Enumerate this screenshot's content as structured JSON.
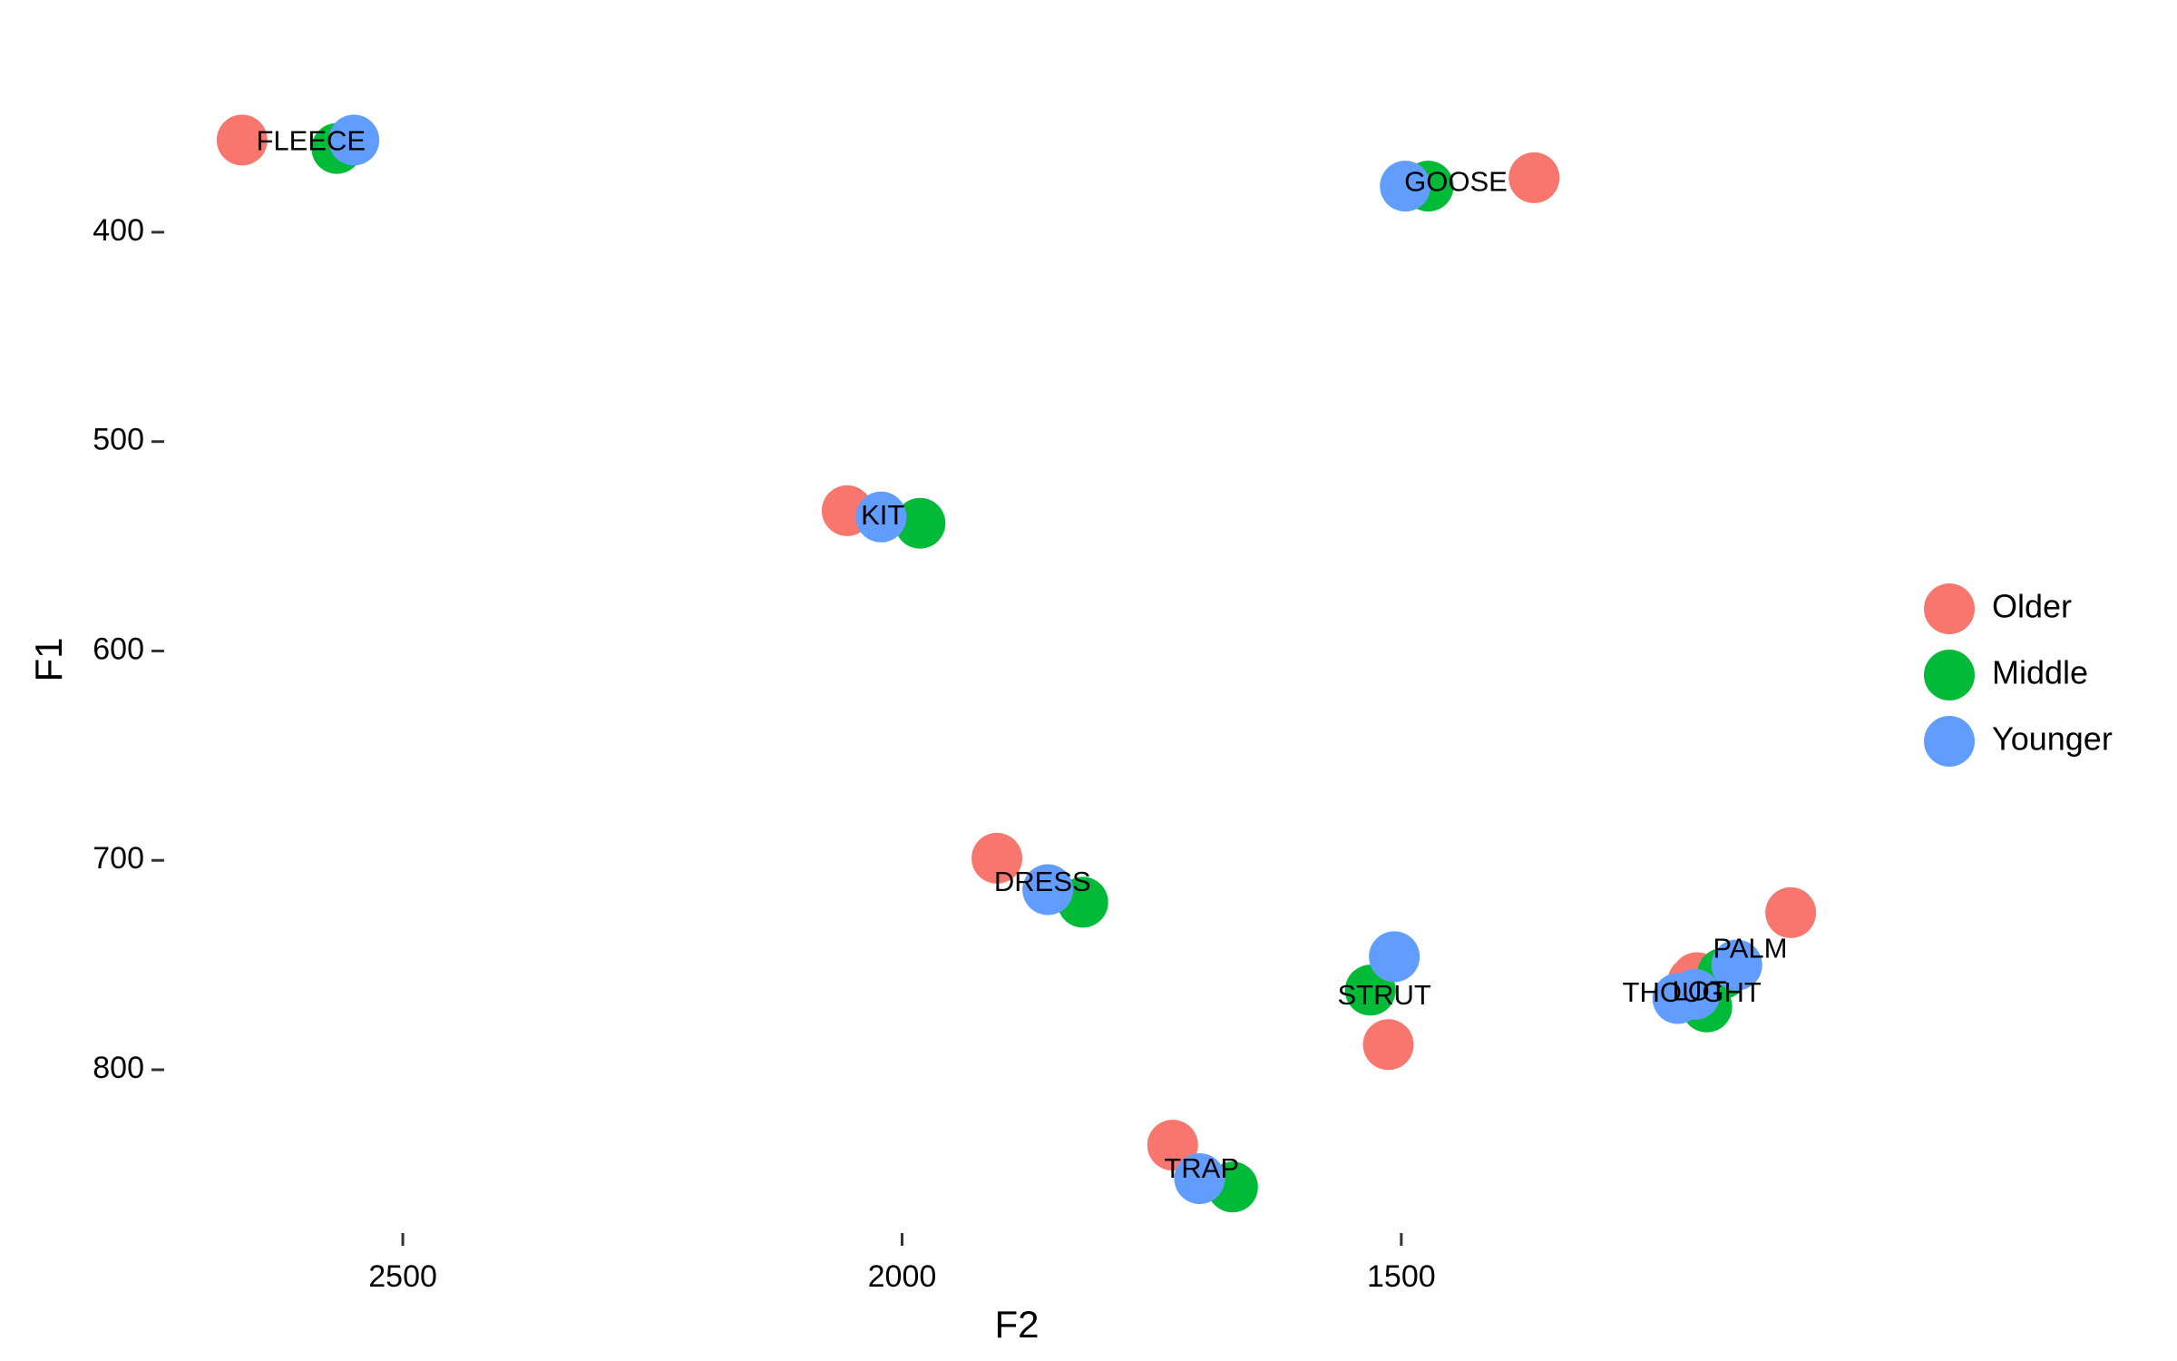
{
  "chart_data": {
    "type": "scatter",
    "x_label": "F2",
    "y_label": "F1",
    "categories": [
      "FLEECE",
      "GOOSE",
      "KIT",
      "DRESS",
      "STRUT",
      "TRAP",
      "PALM",
      "THOUGHT",
      "LOT"
    ],
    "xlim": [
      2739,
      1032
    ],
    "ylim": [
      878,
      332
    ],
    "x_reversed": true,
    "y_reversed": true,
    "xticks": [
      2500,
      2000,
      1500
    ],
    "yticks": [
      400,
      500,
      600,
      700,
      800
    ],
    "legend": "right",
    "series": [
      {
        "name": "Older",
        "color": "#F8766D",
        "x": [
          2661,
          1367,
          2055,
          1905,
          1513,
          1729,
          1110,
          1208,
          1204
        ],
        "values": [
          356,
          374,
          533,
          699,
          788,
          836,
          725,
          758,
          756
        ]
      },
      {
        "name": "Middle",
        "color": "#00BA38",
        "x": [
          2566,
          1473,
          1982,
          1819,
          1531,
          1669,
          1178,
          1196,
          1194
        ],
        "values": [
          360,
          378,
          539,
          720,
          762,
          856,
          754,
          768,
          770
        ]
      },
      {
        "name": "Younger",
        "color": "#619CFF",
        "x": [
          2549,
          1496,
          2021,
          1854,
          1507,
          1702,
          1164,
          1223,
          1206
        ],
        "values": [
          356,
          378,
          536,
          714,
          746,
          852,
          750,
          766,
          764
        ]
      }
    ]
  }
}
